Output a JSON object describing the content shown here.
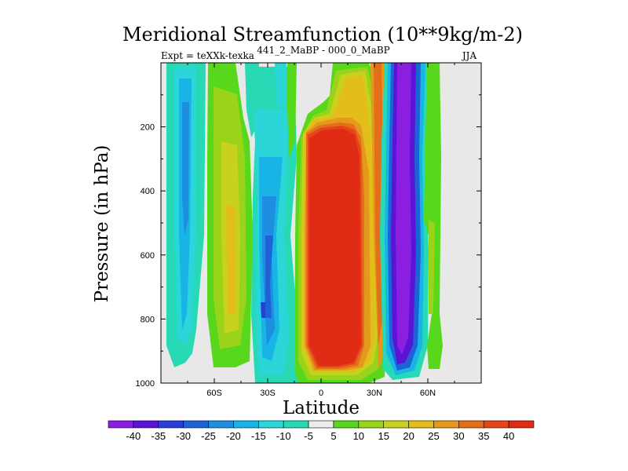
{
  "chart_data": {
    "type": "contour",
    "title": "Meridional Streamfunction (10**9kg/m-2)",
    "subtitle_left": "Expt = teXXk-texka",
    "subtitle_center": "441_2_MaBP - 000_0_MaBP",
    "subtitle_right": "JJA",
    "xlabel": "Latitude",
    "ylabel": "Pressure (in hPa)",
    "xlim": [
      -90,
      90
    ],
    "ylim": [
      1000,
      0
    ],
    "x_ticks": [
      {
        "value": -60,
        "label": "60S"
      },
      {
        "value": -30,
        "label": "30S"
      },
      {
        "value": 0,
        "label": "0"
      },
      {
        "value": 30,
        "label": "30N"
      },
      {
        "value": 60,
        "label": "60N"
      }
    ],
    "y_ticks": [
      {
        "value": 200,
        "label": "200"
      },
      {
        "value": 400,
        "label": "400"
      },
      {
        "value": 600,
        "label": "600"
      },
      {
        "value": 800,
        "label": "800"
      },
      {
        "value": 1000,
        "label": "1000"
      }
    ],
    "colorbar": {
      "levels": [
        "-40",
        "-35",
        "-30",
        "-25",
        "-20",
        "-15",
        "-10",
        "-5",
        "5",
        "10",
        "15",
        "20",
        "25",
        "30",
        "35",
        "40"
      ],
      "colors": [
        "#8a1fe0",
        "#5a14d6",
        "#2a3fd8",
        "#1d63d6",
        "#1e8ee0",
        "#19b4e6",
        "#2bd6d8",
        "#28d9b6",
        "#ececec",
        "#58d81c",
        "#9ad41a",
        "#c8d21e",
        "#e3be1a",
        "#e39a1c",
        "#e46e1a",
        "#e6451a",
        "#e02c14"
      ]
    },
    "regions": [
      {
        "name": "band-80S",
        "lat": [
          -80,
          -72
        ],
        "p": [
          80,
          950
        ],
        "values": [
          -5,
          -10,
          -25,
          -30
        ]
      },
      {
        "name": "band-70S",
        "lat": [
          -66,
          -52
        ],
        "p": [
          80,
          965
        ],
        "values": [
          5,
          10,
          15,
          20
        ]
      },
      {
        "name": "band-50S",
        "lat": [
          -50,
          -40
        ],
        "p": [
          80,
          965
        ],
        "values": [
          -5,
          -10
        ]
      },
      {
        "name": "band-35S",
        "lat": [
          -42,
          -22
        ],
        "p": [
          80,
          980
        ],
        "values": [
          -5,
          -10,
          -15,
          -25,
          -30
        ]
      },
      {
        "name": "band-20S",
        "lat": [
          -28,
          -14
        ],
        "p": [
          80,
          980
        ],
        "values": [
          -5,
          -10,
          -15
        ]
      },
      {
        "name": "hadley-core",
        "lat": [
          -12,
          28
        ],
        "p": [
          80,
          985
        ],
        "values": [
          5,
          10,
          15,
          20,
          25,
          30,
          35,
          40
        ]
      },
      {
        "name": "band-25N",
        "lat": [
          18,
          34
        ],
        "p": [
          80,
          980
        ],
        "values": [
          5,
          15,
          25,
          30,
          35
        ]
      },
      {
        "name": "band-45N",
        "lat": [
          36,
          52
        ],
        "p": [
          80,
          975
        ],
        "values": [
          -5,
          -10,
          -25,
          -35,
          -40
        ]
      },
      {
        "name": "band-60N",
        "lat": [
          50,
          61
        ],
        "p": [
          80,
          940
        ],
        "values": [
          5,
          10
        ]
      }
    ]
  }
}
